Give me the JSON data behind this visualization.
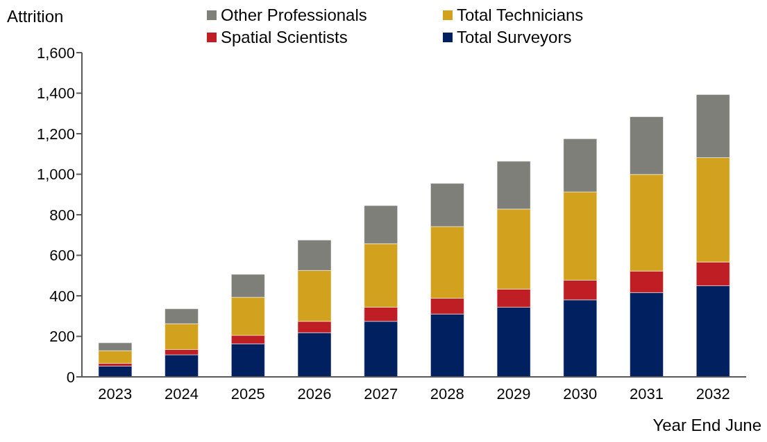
{
  "chart_data": {
    "type": "bar",
    "stacked": true,
    "ylabel": "Attrition",
    "xlabel": "Year End June",
    "legend": "top",
    "categories": [
      "2023",
      "2024",
      "2025",
      "2026",
      "2027",
      "2028",
      "2029",
      "2030",
      "2031",
      "2032"
    ],
    "ylim": [
      0,
      1600
    ],
    "yticks": [
      0,
      200,
      400,
      600,
      800,
      {
        "value": 1000,
        "label": "1,000"
      },
      {
        "value": 1200,
        "label": "1,200"
      },
      {
        "value": 1400,
        "label": "1,400"
      },
      {
        "value": 1600,
        "label": "1,600"
      }
    ],
    "series": [
      {
        "name": "Total Surveyors",
        "color": "#002060",
        "values": [
          53,
          109,
          163,
          218,
          274,
          310,
          344,
          380,
          416,
          450
        ]
      },
      {
        "name": "Spatial Scientists",
        "color": "#be1e24",
        "values": [
          14,
          26,
          42,
          56,
          70,
          78,
          89,
          97,
          106,
          117
        ]
      },
      {
        "name": "Total Technicians",
        "color": "#d2a21f",
        "values": [
          62,
          127,
          188,
          251,
          313,
          354,
          395,
          436,
          477,
          515
        ]
      },
      {
        "name": "Other Professionals",
        "color": "#7f7f79",
        "values": [
          39,
          74,
          113,
          150,
          188,
          213,
          236,
          262,
          285,
          311
        ]
      }
    ]
  }
}
